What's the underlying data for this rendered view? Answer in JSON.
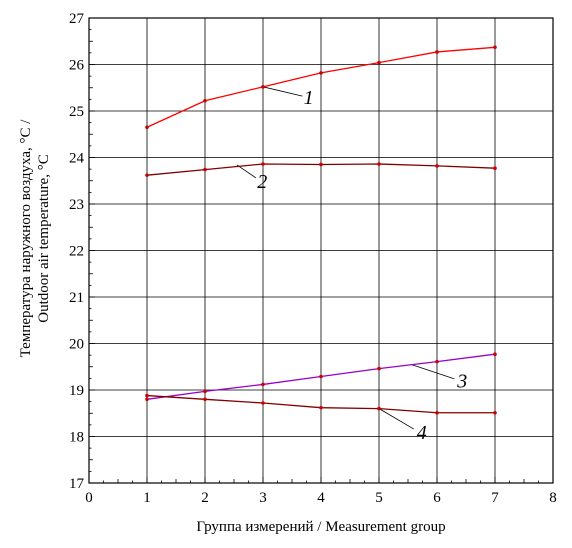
{
  "chart_data": {
    "type": "line",
    "xlabel": "Группа измерений / Measurement group",
    "ylabel_lines": [
      "Температура наружного воздуха, °C /",
      "Outdoor air temperature, °C"
    ],
    "xlim": [
      0,
      8
    ],
    "ylim": [
      17,
      27
    ],
    "xticks": [
      0,
      1,
      2,
      3,
      4,
      5,
      6,
      7,
      8
    ],
    "yticks": [
      17,
      18,
      19,
      20,
      21,
      22,
      23,
      24,
      25,
      26,
      27
    ],
    "grid": true,
    "x": [
      1,
      2,
      3,
      4,
      5,
      6,
      7
    ],
    "series": [
      {
        "name": "1",
        "color": "#ff0000",
        "marker_color": "#cc0000",
        "values": [
          24.65,
          25.22,
          25.52,
          25.82,
          26.04,
          26.27,
          26.37
        ],
        "label_at": [
          3.7,
          25.3
        ]
      },
      {
        "name": "2",
        "color": "#800000",
        "marker_color": "#cc0000",
        "values": [
          23.62,
          23.74,
          23.86,
          23.85,
          23.86,
          23.82,
          23.77
        ],
        "label_at": [
          2.9,
          23.5
        ]
      },
      {
        "name": "3",
        "color": "#9900cc",
        "marker_color": "#cc0000",
        "values": [
          18.8,
          18.97,
          19.12,
          19.29,
          19.46,
          19.61,
          19.77
        ],
        "label_at": [
          6.35,
          19.2
        ]
      },
      {
        "name": "4",
        "color": "#800000",
        "marker_color": "#cc0000",
        "values": [
          18.88,
          18.8,
          18.72,
          18.62,
          18.6,
          18.51,
          18.51
        ],
        "label_at": [
          5.65,
          18.1
        ]
      }
    ],
    "leaders": [
      {
        "series": "1",
        "from": [
          3.0,
          25.52
        ],
        "to": [
          3.68,
          25.32
        ]
      },
      {
        "series": "2",
        "from": [
          2.55,
          23.84
        ],
        "to": [
          2.88,
          23.56
        ]
      },
      {
        "series": "3",
        "from": [
          5.55,
          19.55
        ],
        "to": [
          6.3,
          19.24
        ]
      },
      {
        "series": "4",
        "from": [
          5.0,
          18.6
        ],
        "to": [
          5.6,
          18.16
        ]
      }
    ]
  }
}
